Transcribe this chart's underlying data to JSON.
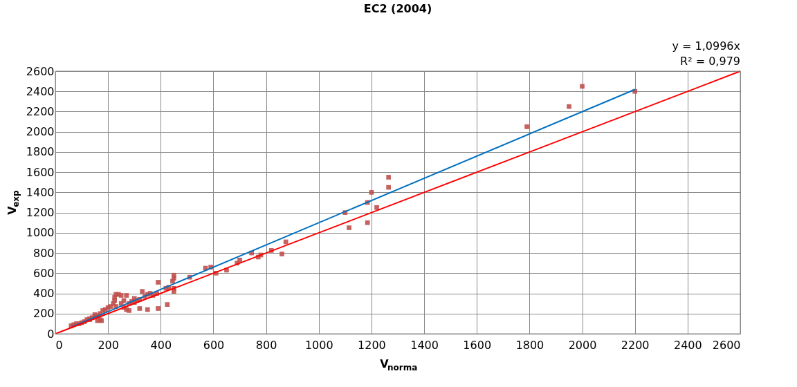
{
  "chart_data": {
    "type": "scatter",
    "title": "EC2 (2004)",
    "xlabel": "V$_{norma}$",
    "ylabel": "V$_{exp}$",
    "annotations": [
      "y = 1,0996x",
      "R² = 0,979"
    ],
    "xlim": [
      0,
      2600
    ],
    "xticks": [
      0,
      200,
      400,
      600,
      800,
      1000,
      1200,
      1400,
      1600,
      1800,
      2000,
      2200,
      2400,
      2600
    ],
    "ylim": [
      0,
      2600
    ],
    "yticks": [
      0,
      200,
      400,
      600,
      800,
      1000,
      1200,
      1400,
      1600,
      1800,
      2000,
      2200,
      2400,
      2600
    ],
    "grid": true,
    "marker": "square",
    "series": [
      {
        "color": "#c0504d",
        "x": [
          2000,
          1950,
          1790,
          2200,
          1265,
          1265,
          1200,
          1185,
          1220,
          1100,
          1185,
          1115,
          875,
          820,
          860,
          770,
          780,
          745,
          700,
          690,
          650,
          610,
          570,
          590,
          510,
          450,
          450,
          445,
          450,
          450,
          430,
          420,
          425,
          390,
          385,
          390,
          370,
          360,
          350,
          340,
          330,
          320,
          320,
          310,
          300,
          290,
          280,
          270,
          270,
          260,
          250,
          240,
          250,
          230,
          225,
          225,
          220,
          210,
          200,
          190,
          180,
          175,
          170,
          160,
          150,
          140,
          130,
          120,
          110,
          100,
          90,
          80,
          70,
          60,
          170,
          160,
          130,
          150,
          280,
          300,
          260,
          230,
          350
        ],
        "values": [
          2450,
          2250,
          2050,
          2400,
          1550,
          1450,
          1400,
          1300,
          1250,
          1200,
          1100,
          1050,
          910,
          825,
          790,
          760,
          780,
          800,
          730,
          700,
          630,
          600,
          650,
          660,
          560,
          580,
          550,
          520,
          450,
          420,
          460,
          450,
          290,
          510,
          400,
          250,
          380,
          400,
          390,
          370,
          420,
          250,
          340,
          330,
          350,
          320,
          300,
          380,
          240,
          330,
          300,
          390,
          380,
          390,
          360,
          330,
          300,
          270,
          260,
          240,
          230,
          130,
          200,
          180,
          170,
          160,
          150,
          140,
          120,
          110,
          100,
          100,
          90,
          80,
          140,
          130,
          140,
          190,
          230,
          310,
          260,
          270,
          240
        ]
      },
      {
        "type": "line",
        "color": "#0070c0",
        "marker": "none",
        "line_style": "solid",
        "x": [
          62,
          2200
        ],
        "values": [
          68,
          2419
        ]
      },
      {
        "type": "line",
        "color": "#ff0000",
        "marker": "none",
        "line_style": "solid",
        "x": [
          0,
          2600
        ],
        "values": [
          0,
          2600
        ]
      }
    ]
  }
}
